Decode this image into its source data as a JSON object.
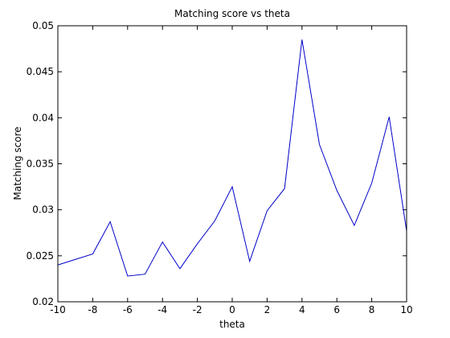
{
  "chart_data": {
    "type": "line",
    "title": "Matching score vs theta",
    "xlabel": "theta",
    "ylabel": "Matching score",
    "xlim": [
      -10,
      10
    ],
    "ylim": [
      0.02,
      0.05
    ],
    "xticks": [
      "-10",
      "-8",
      "-6",
      "-4",
      "-2",
      "0",
      "2",
      "4",
      "6",
      "8",
      "10"
    ],
    "yticks": [
      "0.02",
      "0.025",
      "0.03",
      "0.035",
      "0.04",
      "0.045",
      "0.05"
    ],
    "grid": false,
    "series": [
      {
        "color": "#0000c8",
        "x": [
          -10,
          -9,
          -8,
          -7,
          -6,
          -5,
          -4,
          -3,
          -2,
          -1,
          0,
          1,
          2,
          3,
          4,
          5,
          6,
          7,
          8,
          9,
          10
        ],
        "y": [
          0.024,
          0.0246,
          0.0252,
          0.0287,
          0.0228,
          0.023,
          0.0265,
          0.0236,
          0.0263,
          0.0288,
          0.0325,
          0.0244,
          0.0299,
          0.0323,
          0.0485,
          0.0371,
          0.0321,
          0.0283,
          0.0329,
          0.0401,
          0.0277
        ]
      }
    ]
  }
}
